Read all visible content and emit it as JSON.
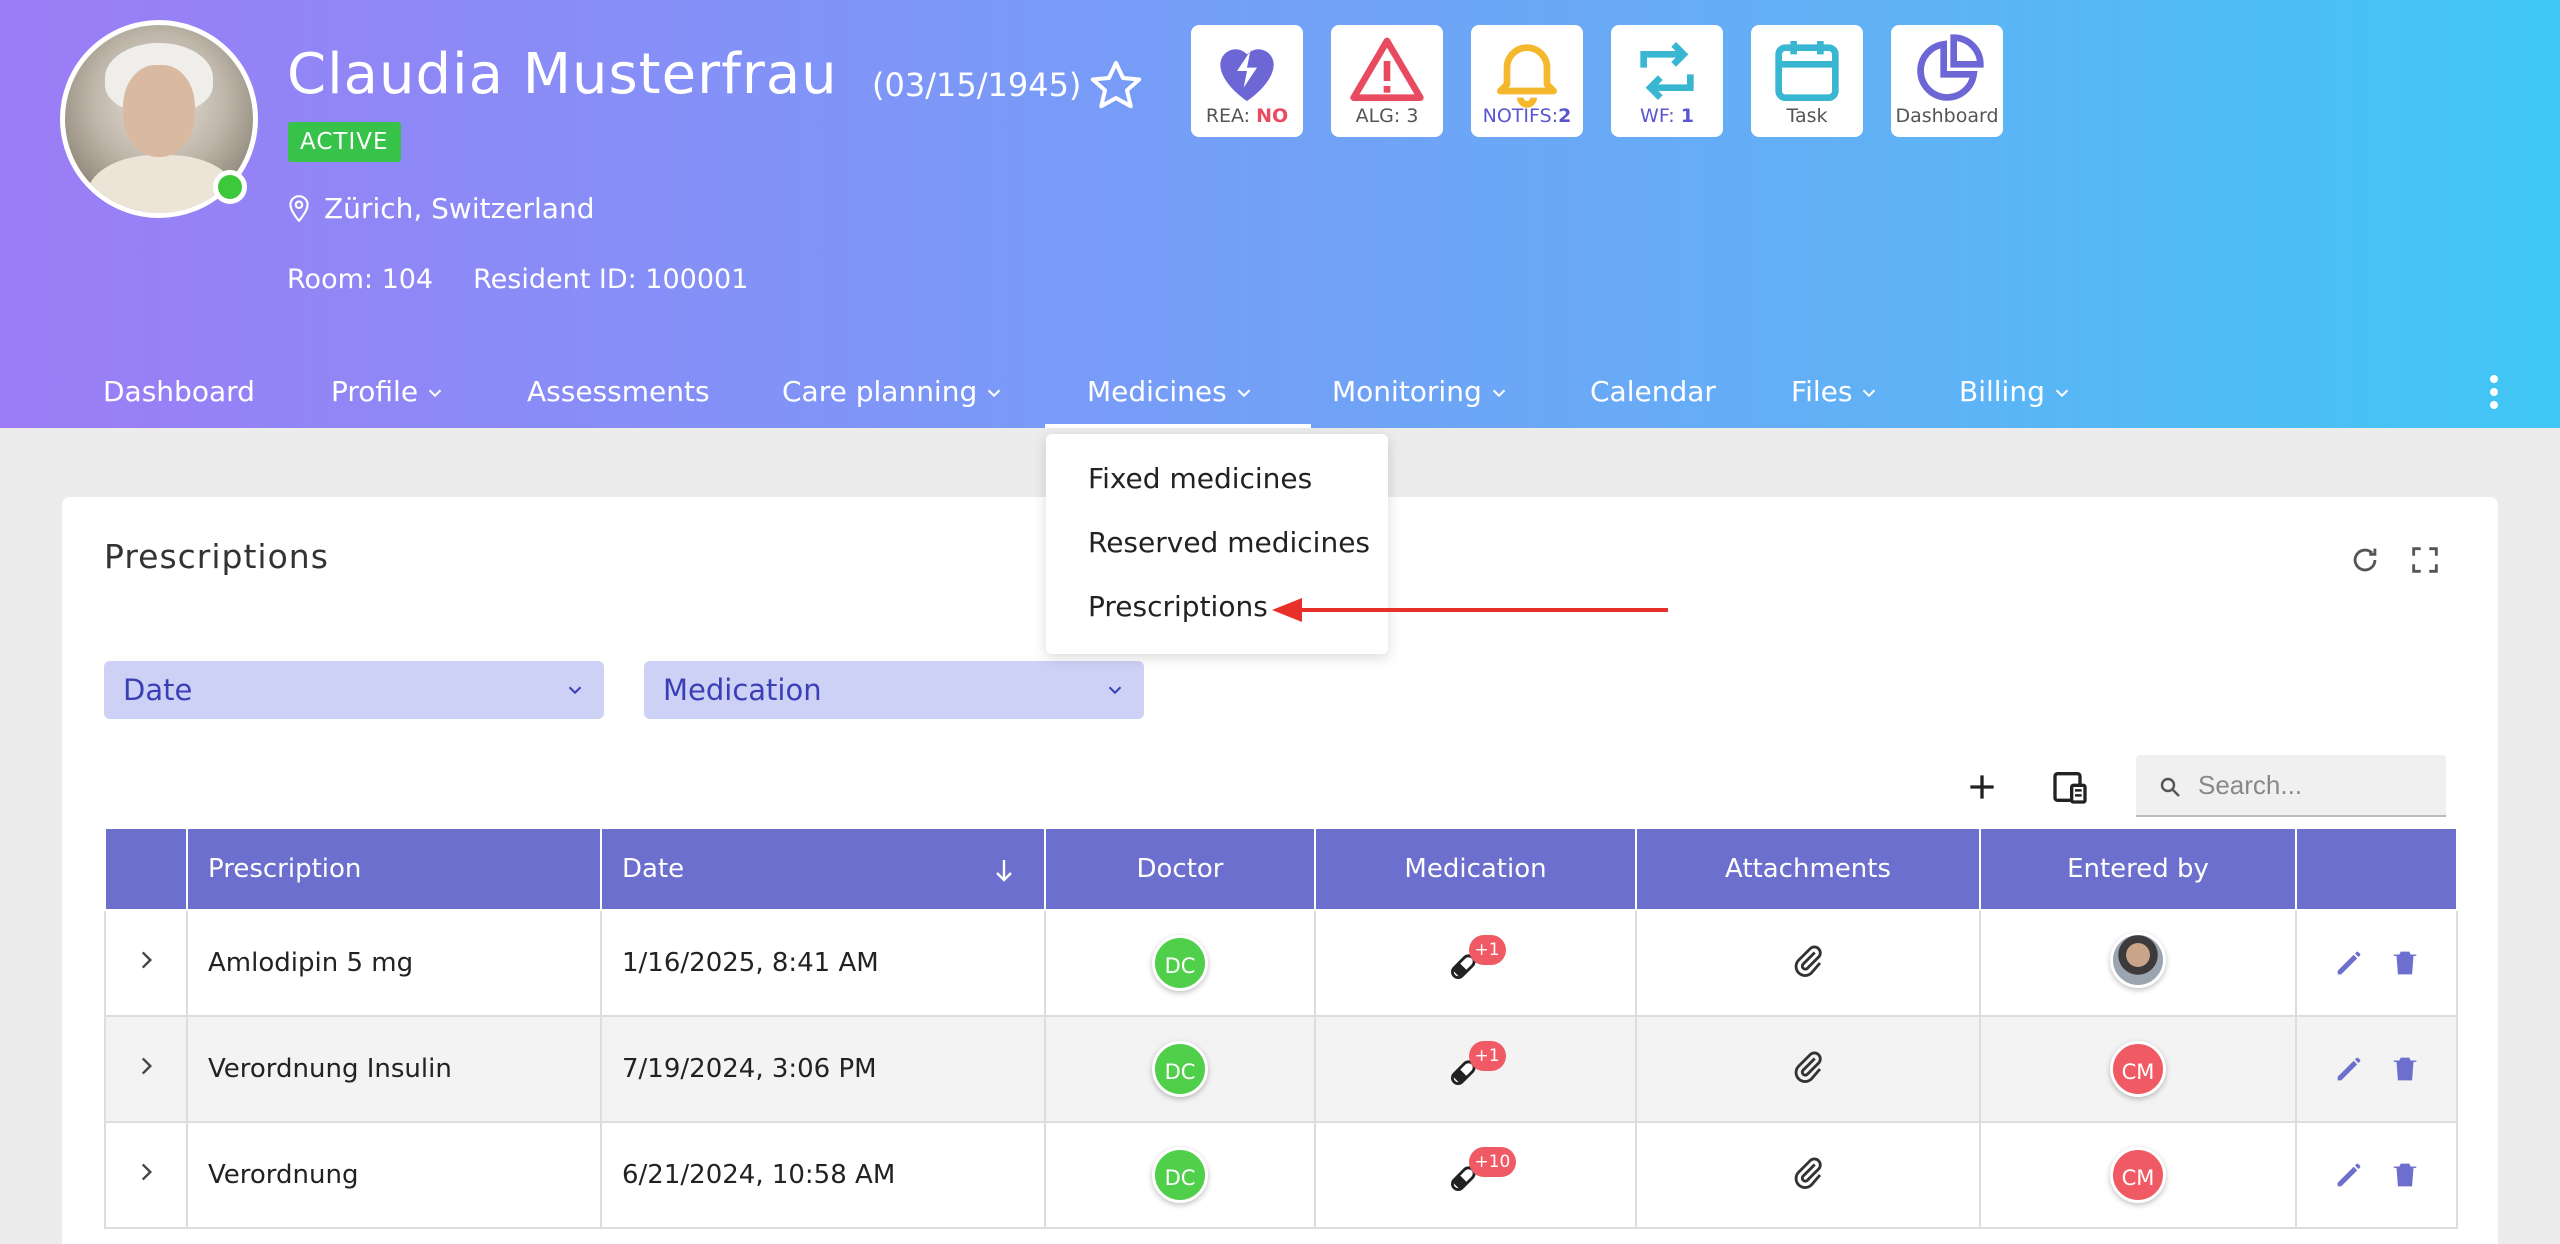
{
  "resident": {
    "name": "Claudia Musterfrau",
    "dob": "(03/15/1945)",
    "status": "ACTIVE",
    "location": "Zürich, Switzerland",
    "room": "Room: 104",
    "resident_id": "Resident ID: 100001"
  },
  "quick_actions": [
    {
      "icon": "heart-bolt-icon",
      "prefix": "REA: ",
      "value": "NO",
      "color": "#6d67d6"
    },
    {
      "icon": "warning-icon",
      "label": "ALG: 3",
      "color": "#e84a5f"
    },
    {
      "icon": "bell-icon",
      "prefix": "NOTIFS:",
      "value": "2",
      "color": "#f5b72b"
    },
    {
      "icon": "workflow-icon",
      "prefix": "WF: ",
      "value": "1",
      "color": "#39b6d1"
    },
    {
      "icon": "calendar-icon",
      "label": "Task",
      "color": "#39b6d1"
    },
    {
      "icon": "pie-chart-icon",
      "label": "Dashboard",
      "color": "#6d67d6"
    }
  ],
  "nav": {
    "items": [
      "Dashboard",
      "Profile",
      "Assessments",
      "Care planning",
      "Medicines",
      "Monitoring",
      "Calendar",
      "Files",
      "Billing"
    ],
    "active": "Medicines"
  },
  "medicines_menu": {
    "items": [
      "Fixed medicines",
      "Reserved medicines",
      "Prescriptions"
    ],
    "highlighted": "Prescriptions"
  },
  "panel": {
    "title": "Prescriptions",
    "filters": [
      "Date",
      "Medication"
    ],
    "search_placeholder": "Search..."
  },
  "table": {
    "columns": [
      "Prescription",
      "Date",
      "Doctor",
      "Medication",
      "Attachments",
      "Entered by"
    ],
    "sort": {
      "column": "Date",
      "direction": "desc"
    },
    "rows": [
      {
        "prescription": "Amlodipin 5 mg",
        "date": "1/16/2025, 8:41 AM",
        "doctor": "DC",
        "med_count": "+1",
        "entered_by": "photo"
      },
      {
        "prescription": "Verordnung Insulin",
        "date": "7/19/2024, 3:06 PM",
        "doctor": "DC",
        "med_count": "+1",
        "entered_by": "CM"
      },
      {
        "prescription": "Verordnung",
        "date": "6/21/2024, 10:58 AM",
        "doctor": "DC",
        "med_count": "+10",
        "entered_by": "CM"
      }
    ]
  },
  "colors": {
    "header_gradient_start": "#9c7cf6",
    "header_gradient_end": "#3fc7f5",
    "table_header": "#6d6fce",
    "filter_bg": "#cdd1f6",
    "status_green": "#37c24a",
    "badge_red": "#ef5a64",
    "action_violet": "#6d6fce"
  }
}
